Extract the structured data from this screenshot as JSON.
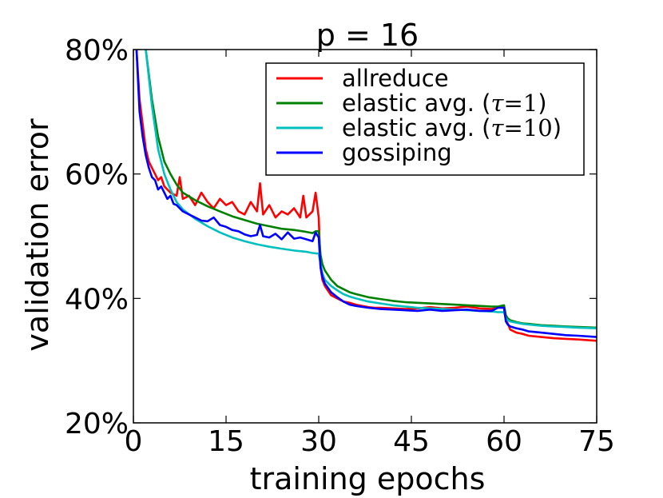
{
  "chart_data": {
    "type": "line",
    "title": "p = 16",
    "xlabel": "training epochs",
    "ylabel": "validation error",
    "xlim": [
      0,
      75
    ],
    "ylim": [
      20,
      80
    ],
    "xticks": [
      0,
      15,
      30,
      45,
      60,
      75
    ],
    "xtick_labels": [
      "0",
      "15",
      "30",
      "45",
      "60",
      "75"
    ],
    "yticks": [
      20,
      40,
      60,
      80
    ],
    "ytick_labels": [
      "20%",
      "40%",
      "60%",
      "80%"
    ],
    "grid": false,
    "legend_position": "top-right",
    "series": [
      {
        "name": "allreduce",
        "legend_text": "allreduce",
        "color": "#ff0000",
        "x": [
          0.5,
          1,
          1.5,
          2,
          2.5,
          3,
          3.5,
          4,
          4.5,
          5,
          6,
          7,
          7.5,
          8,
          9,
          10,
          11,
          12,
          13,
          14,
          15,
          16,
          17,
          18,
          19,
          20,
          20.5,
          21,
          22,
          23,
          24,
          25,
          26,
          27,
          27.5,
          28,
          29,
          29.5,
          30,
          30.3,
          30.6,
          31,
          32,
          33,
          34,
          35,
          36,
          37,
          38,
          39,
          40,
          42,
          44,
          46,
          48,
          50,
          52,
          54,
          56,
          58,
          59,
          60,
          60.3,
          60.6,
          61,
          62,
          63,
          64,
          66,
          68,
          70,
          72,
          75
        ],
        "y": [
          80,
          72,
          68,
          64,
          62,
          61,
          60,
          59,
          59.5,
          58,
          57,
          56.5,
          59.5,
          56,
          56.5,
          55,
          57,
          55.5,
          54.5,
          56,
          55,
          55.5,
          54,
          53.5,
          55.5,
          54,
          58.5,
          53.5,
          55,
          53,
          54,
          53.5,
          54.5,
          53,
          56.5,
          53,
          54,
          57,
          53,
          45,
          43,
          42,
          40.5,
          40,
          39.5,
          39.3,
          39,
          38.8,
          38.6,
          38.5,
          38.5,
          38.4,
          38.3,
          38.4,
          38.6,
          38.4,
          38.5,
          38.7,
          38.4,
          38.3,
          38.6,
          38.5,
          36.5,
          36,
          35,
          34.5,
          34.3,
          34,
          33.8,
          33.6,
          33.5,
          33.4,
          33.2
        ]
      },
      {
        "name": "elastic avg. (τ=1)",
        "legend_prefix": "elastic avg. (",
        "legend_symbol": "τ",
        "legend_eq": "=1",
        "legend_suffix": ")",
        "color": "#008000",
        "x": [
          2,
          3,
          4,
          5,
          6,
          7,
          8,
          10,
          12,
          14,
          16,
          18,
          20,
          22,
          24,
          26,
          28,
          29,
          29.5,
          30,
          30.3,
          30.6,
          31,
          32,
          33,
          34,
          35,
          36,
          38,
          40,
          42,
          44,
          46,
          48,
          50,
          52,
          54,
          56,
          58,
          59,
          60,
          60.3,
          60.6,
          61,
          62,
          63,
          64,
          66,
          68,
          70,
          72,
          75
        ],
        "y": [
          80,
          72,
          66,
          62,
          60,
          58.3,
          57,
          55.8,
          54.8,
          54,
          53.2,
          52.6,
          52,
          51.6,
          51.2,
          51,
          50.7,
          50.5,
          50.8,
          50.8,
          47,
          45.5,
          44.5,
          43,
          42,
          41.5,
          41,
          40.7,
          40.2,
          39.9,
          39.6,
          39.4,
          39.3,
          39.2,
          39.1,
          39,
          38.9,
          38.8,
          38.7,
          38.7,
          38.9,
          37.3,
          36.8,
          36.5,
          36.2,
          36,
          35.9,
          35.7,
          35.6,
          35.5,
          35.4,
          35.3
        ]
      },
      {
        "name": "elastic avg. (τ=10)",
        "legend_prefix": "elastic avg. (",
        "legend_symbol": "τ",
        "legend_eq": "=10",
        "legend_suffix": ")",
        "color": "#00bfbf",
        "x": [
          2,
          3,
          4,
          5,
          6,
          7,
          8,
          10,
          12,
          14,
          16,
          18,
          20,
          22,
          24,
          26,
          28,
          29,
          30,
          30.3,
          30.6,
          31,
          32,
          33,
          34,
          35,
          36,
          38,
          40,
          42,
          44,
          46,
          48,
          50,
          52,
          54,
          56,
          58,
          59,
          60,
          60.3,
          60.6,
          61,
          62,
          63,
          64,
          66,
          68,
          70,
          72,
          75
        ],
        "y": [
          80,
          71,
          64,
          60,
          57.5,
          55.5,
          54.3,
          52.8,
          51.6,
          50.6,
          49.8,
          49.2,
          48.7,
          48.3,
          48,
          47.7,
          47.5,
          47.3,
          47.2,
          45.5,
          44,
          43,
          42,
          41.3,
          40.7,
          40.3,
          40,
          39.5,
          39.2,
          38.9,
          38.7,
          38.5,
          38.4,
          38.3,
          38.2,
          38.1,
          38,
          37.9,
          37.8,
          37.8,
          36.8,
          36.5,
          36.3,
          36.1,
          35.9,
          35.8,
          35.6,
          35.5,
          35.4,
          35.3,
          35.2
        ]
      },
      {
        "name": "gossiping",
        "legend_text": "gossiping",
        "color": "#0000ff",
        "x": [
          0.5,
          1,
          1.5,
          2,
          2.5,
          3,
          3.5,
          4,
          4.5,
          5,
          5.5,
          6,
          6.5,
          7,
          8,
          9,
          10,
          11,
          12,
          13,
          14,
          15,
          16,
          17,
          18,
          19,
          20,
          20.5,
          21,
          22,
          23,
          24,
          25,
          26,
          27,
          28,
          29,
          29.5,
          30,
          30.3,
          30.6,
          31,
          32,
          33,
          34,
          35,
          36,
          38,
          40,
          42,
          44,
          46,
          48,
          50,
          52,
          54,
          56,
          58,
          59,
          60,
          60.3,
          60.6,
          61,
          62,
          63,
          64,
          66,
          68,
          70,
          72,
          75
        ],
        "y": [
          80,
          70,
          66,
          63,
          61,
          59.5,
          59,
          57.5,
          58,
          57,
          56,
          56.5,
          55.2,
          55,
          54,
          53.5,
          53,
          52.5,
          52.4,
          53,
          51.8,
          51.5,
          51,
          50.8,
          50.3,
          50,
          50.2,
          51.8,
          50,
          49.8,
          50.4,
          49.5,
          50.6,
          49.6,
          49.8,
          49.5,
          49.2,
          50.6,
          49.8,
          45,
          43.5,
          42.4,
          41,
          40.2,
          39.5,
          39,
          38.8,
          38.5,
          38.3,
          38.2,
          38.1,
          38,
          38.2,
          38,
          38.1,
          38.2,
          38,
          38,
          38.5,
          38.5,
          36.3,
          35.8,
          35.5,
          35.2,
          35,
          34.7,
          34.5,
          34.3,
          34.1,
          34,
          33.8
        ]
      }
    ]
  }
}
